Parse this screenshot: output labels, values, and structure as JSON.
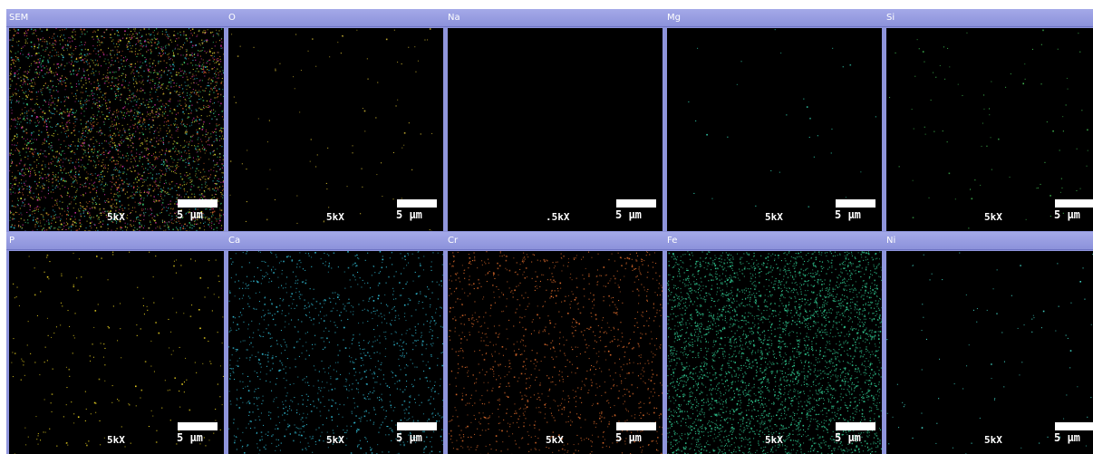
{
  "panels": [
    {
      "label": "SEM",
      "magnification": "5kX",
      "scale": "5 µm",
      "icon": "sem-composite-map",
      "colors": [
        "#c8aa32",
        "#30b8c8",
        "#d05a2a",
        "#3cc870",
        "#d030a0",
        "#dcdc30"
      ],
      "density": "very-high"
    },
    {
      "label": "O",
      "magnification": "5kX",
      "scale": "5 µm",
      "icon": "oxygen-map",
      "colors": [
        "#c8b030"
      ],
      "density": "low"
    },
    {
      "label": "Na",
      "magnification": ".5kX",
      "scale": "5 µm",
      "icon": "sodium-map",
      "colors": [
        "#1a1a1a"
      ],
      "density": "none"
    },
    {
      "label": "Mg",
      "magnification": "5kX",
      "scale": "5 µm",
      "icon": "magnesium-map",
      "colors": [
        "#30c8a8"
      ],
      "density": "very-low"
    },
    {
      "label": "Si",
      "magnification": "5kX",
      "scale": "5 µm",
      "icon": "silicon-map",
      "colors": [
        "#40b850"
      ],
      "density": "low"
    },
    {
      "label": "P",
      "magnification": "5kX",
      "scale": "5 µm",
      "icon": "phosphorus-map",
      "colors": [
        "#e8d020"
      ],
      "density": "medium"
    },
    {
      "label": "Ca",
      "magnification": "5kX",
      "scale": "5 µm",
      "icon": "calcium-map",
      "colors": [
        "#30b8d0"
      ],
      "density": "high"
    },
    {
      "label": "Cr",
      "magnification": "5kX",
      "scale": "5 µm",
      "icon": "chromium-map",
      "colors": [
        "#d8682a"
      ],
      "density": "high"
    },
    {
      "label": "Fe",
      "magnification": "5kX",
      "scale": "5 µm",
      "icon": "iron-map",
      "colors": [
        "#30c890"
      ],
      "density": "very-high"
    },
    {
      "label": "Ni",
      "magnification": "5kX",
      "scale": "5 µm",
      "icon": "nickel-map",
      "colors": [
        "#40d0c0"
      ],
      "density": "low"
    }
  ]
}
